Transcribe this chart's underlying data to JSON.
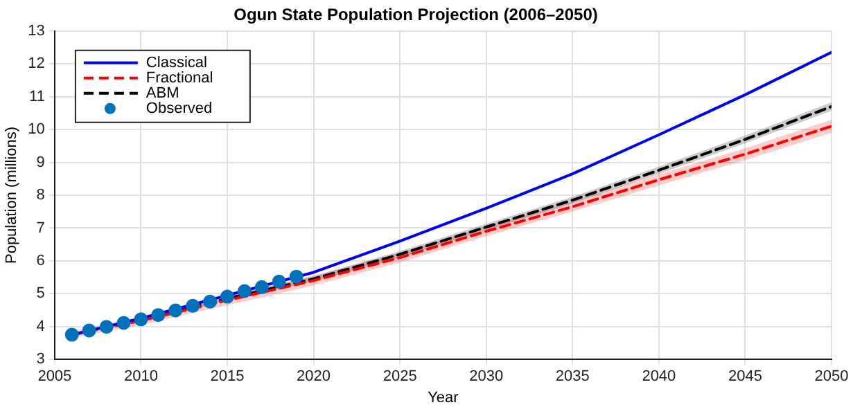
{
  "chart_data": {
    "type": "line",
    "title": "Ogun State Population Projection (2006–2050)",
    "xlabel": "Year",
    "ylabel": "Population (millions)",
    "xlim": [
      2005,
      2050
    ],
    "xticks": [
      2005,
      2010,
      2015,
      2020,
      2025,
      2030,
      2035,
      2040,
      2045,
      2050
    ],
    "ylim": [
      3,
      13
    ],
    "yticks": [
      3,
      4,
      5,
      6,
      7,
      8,
      9,
      10,
      11,
      12,
      13
    ],
    "grid": true,
    "legend": "top left",
    "series": [
      {
        "name": "Classical",
        "color": "#0000ff",
        "line_style": "solid",
        "marker": "none",
        "x": [
          2006,
          2010,
          2015,
          2020,
          2025,
          2030,
          2035,
          2040,
          2045,
          2050
        ],
        "values": [
          3.75,
          4.25,
          4.95,
          5.65,
          6.6,
          7.6,
          8.65,
          9.84,
          11.06,
          12.35
        ]
      },
      {
        "name": "Fractional",
        "color": "#ff0000",
        "line_style": "dashed",
        "marker": "none",
        "x": [
          2006,
          2010,
          2015,
          2020,
          2025,
          2030,
          2035,
          2040,
          2045,
          2050
        ],
        "values": [
          3.75,
          4.18,
          4.8,
          5.4,
          6.1,
          6.9,
          7.65,
          8.47,
          9.25,
          10.1
        ],
        "lower": [
          3.65,
          4.05,
          4.65,
          5.25,
          5.95,
          6.75,
          7.5,
          8.3,
          9.07,
          9.9
        ],
        "upper": [
          3.85,
          4.3,
          4.95,
          5.55,
          6.25,
          7.05,
          7.8,
          8.64,
          9.43,
          10.3
        ]
      },
      {
        "name": "ABM",
        "color": "#000000",
        "line_style": "dashed",
        "marker": "none",
        "x": [
          2006,
          2010,
          2015,
          2020,
          2025,
          2030,
          2035,
          2040,
          2045,
          2050
        ],
        "values": [
          3.75,
          4.2,
          4.85,
          5.45,
          6.2,
          7.03,
          7.85,
          8.76,
          9.7,
          10.7
        ],
        "lower": [
          3.7,
          4.14,
          4.78,
          5.37,
          6.1,
          6.93,
          7.75,
          8.65,
          9.58,
          10.57
        ],
        "upper": [
          3.8,
          4.26,
          4.92,
          5.53,
          6.3,
          7.13,
          7.95,
          8.87,
          9.82,
          10.83
        ]
      },
      {
        "name": "Observed",
        "type": "scatter",
        "color": "#0072bd",
        "marker": "circle",
        "x": [
          2006,
          2007,
          2008,
          2009,
          2010,
          2011,
          2012,
          2013,
          2014,
          2015,
          2016,
          2017,
          2018,
          2019
        ],
        "values": [
          3.75,
          3.88,
          3.99,
          4.11,
          4.22,
          4.35,
          4.49,
          4.63,
          4.76,
          4.91,
          5.08,
          5.2,
          5.37,
          5.52
        ]
      }
    ]
  }
}
